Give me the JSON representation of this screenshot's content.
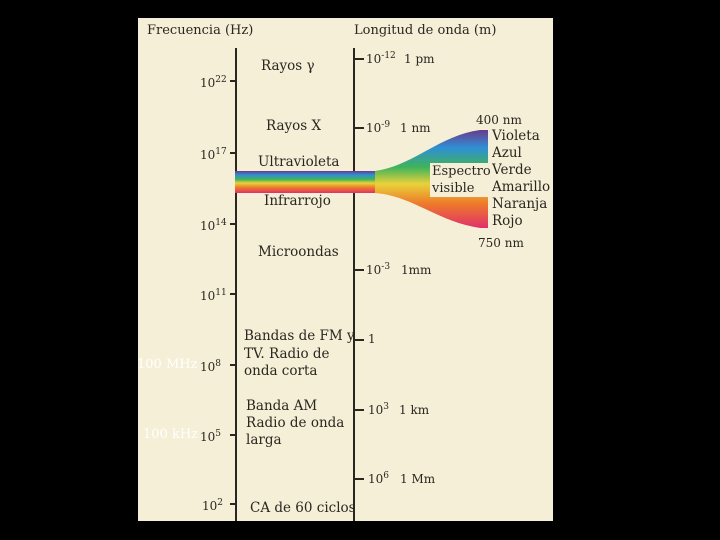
{
  "header": {
    "frequency": "Frecuencia (Hz)",
    "wavelength": "Longitud de onda (m)"
  },
  "freq_ticks": [
    {
      "mantissa": "10",
      "exp": "22"
    },
    {
      "mantissa": "10",
      "exp": "17"
    },
    {
      "mantissa": "10",
      "exp": "14"
    },
    {
      "mantissa": "10",
      "exp": "11"
    },
    {
      "mantissa": "10",
      "exp": "8"
    },
    {
      "mantissa": "10",
      "exp": "5"
    },
    {
      "mantissa": "10",
      "exp": "2"
    }
  ],
  "freq_side_labels": [
    "100 MHz",
    "100 kHz"
  ],
  "wave_ticks": [
    {
      "mantissa": "10",
      "exp": "-12",
      "unit": "1 pm"
    },
    {
      "mantissa": "10",
      "exp": "-9",
      "unit": "1 nm"
    },
    {
      "mantissa": "10",
      "exp": "-3",
      "unit": "1mm"
    },
    {
      "mantissa": "1",
      "exp": "",
      "unit": ""
    },
    {
      "mantissa": "10",
      "exp": "3",
      "unit": "1 km"
    },
    {
      "mantissa": "10",
      "exp": "6",
      "unit": "1 Mm"
    }
  ],
  "regions": {
    "gamma": "Rayos γ",
    "xray": "Rayos X",
    "uv": "Ultravioleta",
    "ir": "Infrarrojo",
    "micro": "Microondas",
    "fm_1": "Bandas de FM y",
    "fm_2": "TV. Radio de",
    "fm_3": "onda corta",
    "am_1": "Banda AM",
    "am_2": "Radio de onda",
    "am_3": "larga",
    "ac": "CA de 60 ciclos"
  },
  "visible": {
    "label_1": "Espectro",
    "label_2": "visible",
    "top_nm": "400 nm",
    "bottom_nm": "750 nm",
    "colors": [
      {
        "name": "Violeta",
        "hex": "#6a3a8c"
      },
      {
        "name": "Azul",
        "hex": "#2f8fd6"
      },
      {
        "name": "Verde",
        "hex": "#3fb35a"
      },
      {
        "name": "Amarillo",
        "hex": "#e8d23a"
      },
      {
        "name": "Naranja",
        "hex": "#ee7a2a"
      },
      {
        "name": "Rojo",
        "hex": "#e0306a"
      }
    ]
  }
}
